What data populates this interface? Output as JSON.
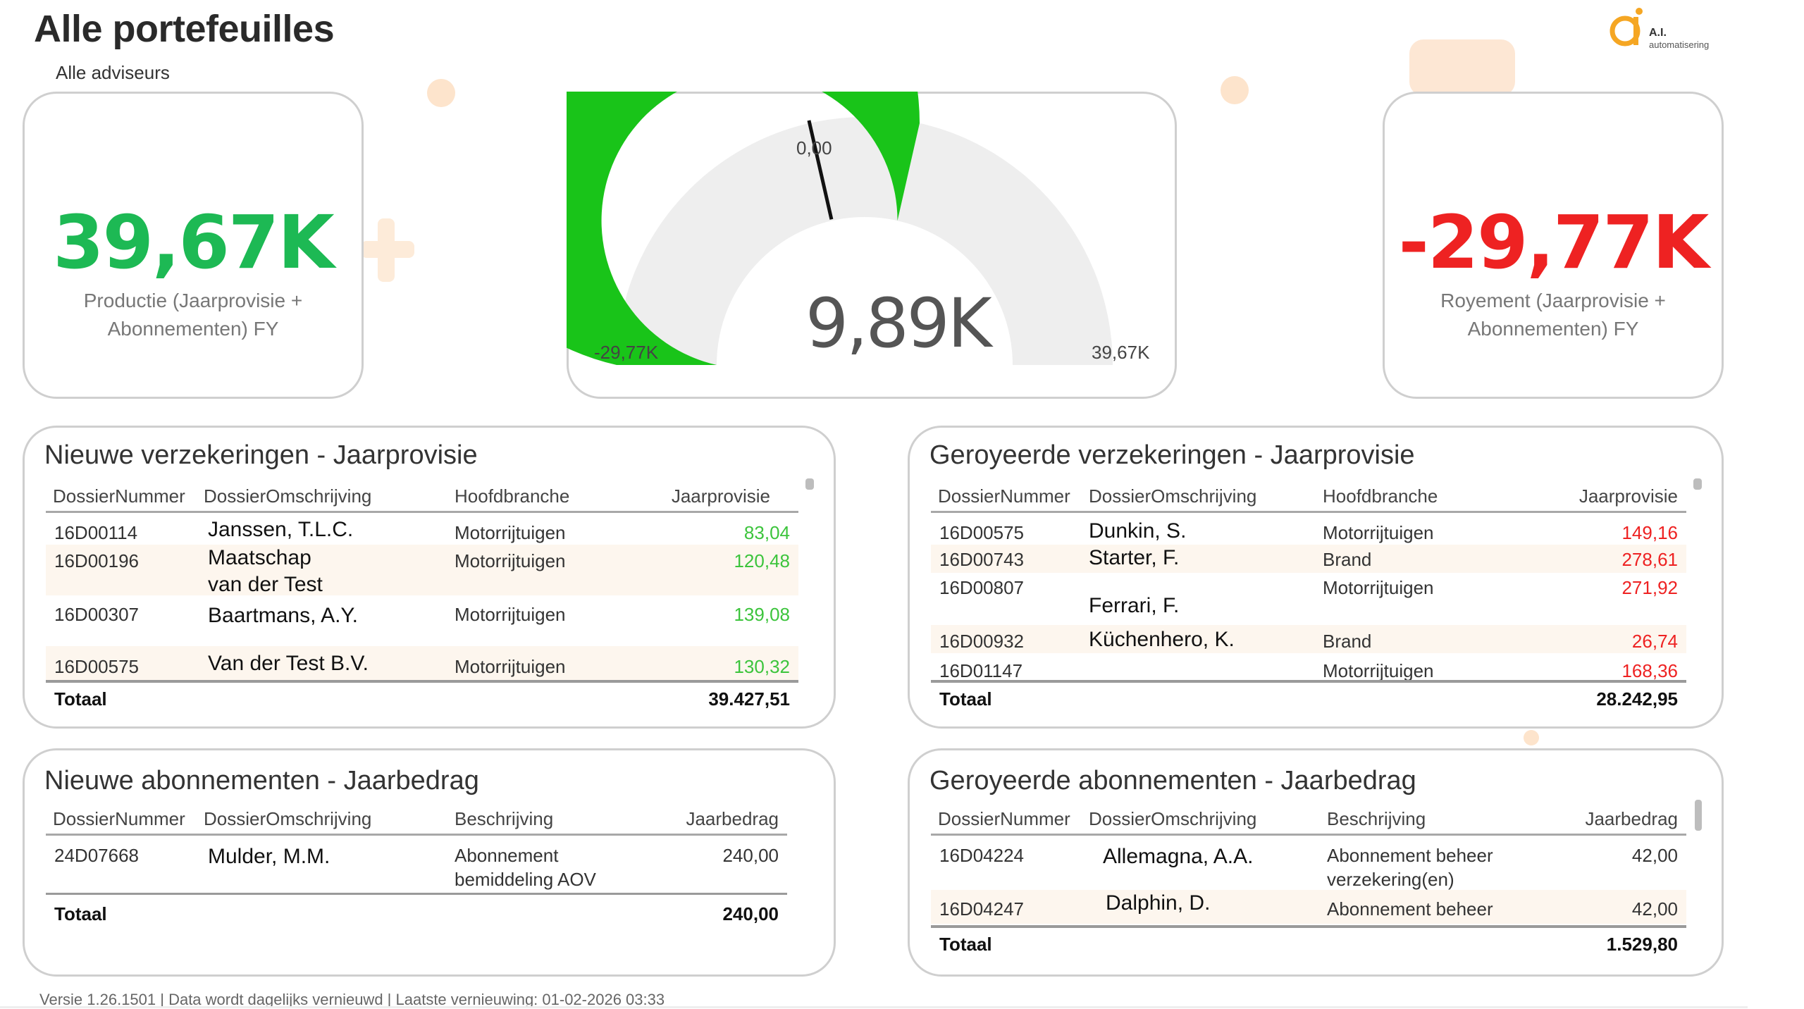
{
  "header": {
    "title": "Alle portefeuilles",
    "subtitle": "Alle adviseurs",
    "logo_brand": "A.I.",
    "logo_tagline": "automatisering"
  },
  "kpi_production": {
    "value": "39,67K",
    "label_line1": "Productie (Jaarprovisie +",
    "label_line2": "Abonnementen) FY",
    "color": "#1db954"
  },
  "gauge": {
    "target_label": "0,00",
    "min_label": "-29,77K",
    "max_label": "39,67K",
    "value_label": "9,89K",
    "min": -29770,
    "max": 39670,
    "value": 9890,
    "target": 0,
    "fill_color": "#19c419",
    "track_color": "#eeeeee"
  },
  "kpi_royement": {
    "value": "-29,77K",
    "label_line1": "Royement (Jaarprovisie +",
    "label_line2": "Abonnementen) FY",
    "color": "#ee2222"
  },
  "new_policies": {
    "title": "Nieuwe verzekeringen - Jaarprovisie",
    "columns": [
      "DossierNummer",
      "DossierOmschrijving",
      "Hoofdbranche",
      "Jaarprovisie"
    ],
    "rows": [
      {
        "nr": "16D00114",
        "desc": "Janssen, T.L.C.",
        "branch": "Motorrijtuigen",
        "value": "83,04"
      },
      {
        "nr": "16D00196",
        "desc": "Maatschap",
        "desc2": "van der Test",
        "branch": "Motorrijtuigen",
        "value": "120,48"
      },
      {
        "nr": "16D00307",
        "desc": "Baartmans, A.Y.",
        "branch": "Motorrijtuigen",
        "value": "139,08"
      },
      {
        "nr": "16D00575",
        "desc": "Van der Test B.V.",
        "branch": "Motorrijtuigen",
        "value": "130,32"
      }
    ],
    "total_label": "Totaal",
    "total_value": "39.427,51",
    "value_color": "#3cc43c"
  },
  "cancelled_policies": {
    "title": "Geroyeerde verzekeringen - Jaarprovisie",
    "columns": [
      "DossierNummer",
      "DossierOmschrijving",
      "Hoofdbranche",
      "Jaarprovisie"
    ],
    "rows": [
      {
        "nr": "16D00575",
        "desc": "Dunkin, S.",
        "branch": "Motorrijtuigen",
        "value": "149,16"
      },
      {
        "nr": "16D00743",
        "desc": "Starter, F.",
        "branch": "Brand",
        "value": "278,61"
      },
      {
        "nr": "16D00807",
        "desc": "Ferrari, F.",
        "branch": "Motorrijtuigen",
        "value": "271,92"
      },
      {
        "nr": "16D00932",
        "desc": "Küchenhero, K.",
        "branch": "Brand",
        "value": "26,74"
      },
      {
        "nr": "16D01147",
        "desc": "",
        "branch": "Motorrijtuigen",
        "value": "168,36"
      }
    ],
    "total_label": "Totaal",
    "total_value": "28.242,95",
    "value_color": "#ee2222"
  },
  "new_subscriptions": {
    "title": "Nieuwe abonnementen - Jaarbedrag",
    "columns": [
      "DossierNummer",
      "DossierOmschrijving",
      "Beschrijving",
      "Jaarbedrag"
    ],
    "rows": [
      {
        "nr": "24D07668",
        "desc": "Mulder, M.M.",
        "descr1": "Abonnement",
        "descr2": "bemiddeling AOV",
        "value": "240,00"
      }
    ],
    "total_label": "Totaal",
    "total_value": "240,00"
  },
  "cancelled_subscriptions": {
    "title": "Geroyeerde abonnementen - Jaarbedrag",
    "columns": [
      "DossierNummer",
      "DossierOmschrijving",
      "Beschrijving",
      "Jaarbedrag"
    ],
    "rows": [
      {
        "nr": "16D04224",
        "desc": "Allemagna, A.A.",
        "descr1": "Abonnement beheer",
        "descr2": "verzekering(en)",
        "value": "42,00"
      },
      {
        "nr": "16D04247",
        "desc": "Dalphin, D.",
        "descr1": "Abonnement beheer",
        "value": "42,00"
      }
    ],
    "total_label": "Totaal",
    "total_value": "1.529,80"
  },
  "footer": {
    "text": "Versie 1.26.1501 | Data wordt dagelijks vernieuwd | Laatste vernieuwing: 01-02-2026 03:33"
  }
}
